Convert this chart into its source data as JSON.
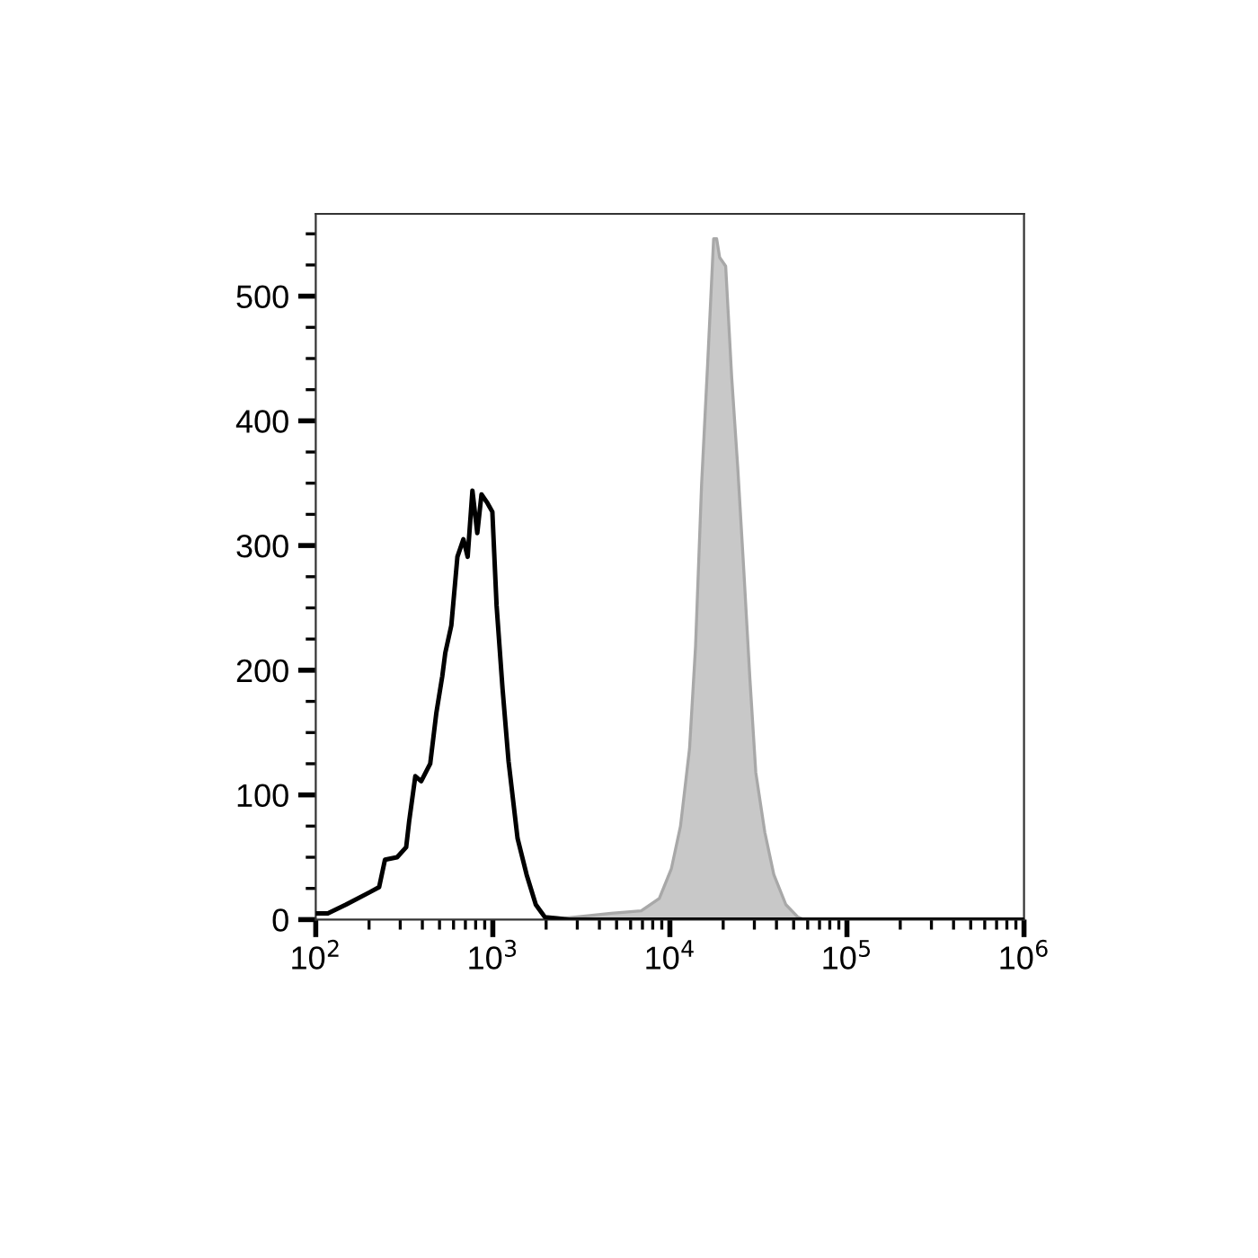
{
  "chart_data": {
    "type": "line",
    "log": "x",
    "xlim": [
      100,
      1000000
    ],
    "ylim": [
      0,
      566
    ],
    "xticks": [
      {
        "value": 100,
        "label": "10$^{2}$"
      },
      {
        "value": 1000,
        "label": "10$^{3}$"
      },
      {
        "value": 10000,
        "label": "10$^{4}$"
      },
      {
        "value": 100000,
        "label": "10$^{5}$"
      },
      {
        "value": 1000000,
        "label": "10$^{6}$"
      }
    ],
    "yticks": [
      0,
      100,
      200,
      300,
      400,
      500
    ],
    "grid": false,
    "legend": false,
    "series": [
      {
        "type": "area",
        "color": "#c8c8c8",
        "x": [
          2128,
          4656,
          6887,
          8713,
          10200,
          11480,
          12910,
          13960,
          15100,
          16330,
          17660,
          18370,
          19100,
          20660,
          22340,
          24160,
          26130,
          28260,
          30560,
          34370,
          38650,
          45190,
          52840,
          57150
        ],
        "values": [
          0,
          5,
          7,
          17,
          41,
          75,
          137,
          219,
          349,
          445,
          546,
          546,
          531,
          524,
          435,
          363,
          281,
          195,
          118,
          70,
          36,
          12,
          2,
          0
        ]
      },
      {
        "color": "#000000",
        "x": [
          100,
          117,
          148,
          202,
          228,
          246,
          288,
          324,
          337,
          365,
          394,
          443,
          480,
          518,
          539,
          583,
          631,
          682,
          721,
          767,
          817,
          863,
          933,
          994,
          1050,
          1135,
          1227,
          1380,
          1552,
          1749,
          1967,
          2301,
          2692,
          1000000
        ],
        "values": [
          5,
          5,
          12,
          22,
          26,
          48,
          50,
          58,
          79,
          115,
          111,
          125,
          166,
          195,
          214,
          236,
          291,
          305,
          291,
          344,
          310,
          341,
          334,
          327,
          252,
          185,
          127,
          65,
          36,
          12,
          2,
          1,
          0,
          0
        ]
      }
    ]
  }
}
